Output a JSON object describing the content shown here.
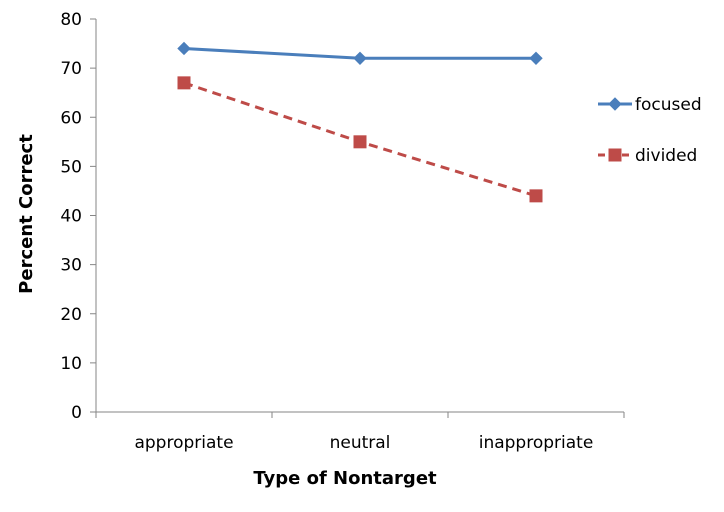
{
  "chart_data": {
    "type": "line",
    "title": "",
    "xlabel": "Type of Nontarget",
    "ylabel": "Percent Correct",
    "categories": [
      "appropriate",
      "neutral",
      "inappropriate"
    ],
    "series": [
      {
        "name": "focused",
        "values": [
          74,
          72,
          72
        ],
        "color": "#4a7ebb",
        "marker": "diamond",
        "line_style": "solid"
      },
      {
        "name": "divided",
        "values": [
          67,
          55,
          44
        ],
        "color": "#be4b48",
        "marker": "square",
        "line_style": "dashed"
      }
    ],
    "ylim": [
      0,
      80
    ],
    "yticks": [
      0,
      10,
      20,
      30,
      40,
      50,
      60,
      70,
      80
    ],
    "grid": false,
    "legend_position": "right"
  }
}
